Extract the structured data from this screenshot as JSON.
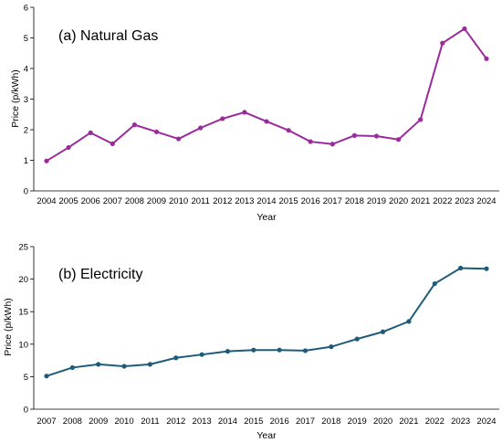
{
  "chart_data": [
    {
      "type": "line",
      "title": "(a) Natural Gas",
      "xlabel": "Year",
      "ylabel": "Price (p/kWh)",
      "ylim": [
        0,
        6
      ],
      "yticks": [
        0,
        1,
        2,
        3,
        4,
        5,
        6
      ],
      "x": [
        "2004",
        "2005",
        "2006",
        "2007",
        "2008",
        "2009",
        "2010",
        "2011",
        "2012",
        "2013",
        "2014",
        "2015",
        "2016",
        "2017",
        "2018",
        "2019",
        "2020",
        "2021",
        "2022",
        "2023",
        "2024"
      ],
      "series": [
        {
          "color": "#9b2a9c",
          "values": [
            0.98,
            1.42,
            1.9,
            1.54,
            2.16,
            1.93,
            1.7,
            2.06,
            2.36,
            2.57,
            2.27,
            1.98,
            1.61,
            1.53,
            1.81,
            1.79,
            1.68,
            2.33,
            4.83,
            5.3,
            4.32
          ]
        }
      ],
      "grid": false,
      "legend": "none"
    },
    {
      "type": "line",
      "title": "(b) Electricity",
      "xlabel": "Year",
      "ylabel": "Price (p/kWh)",
      "ylim": [
        0,
        25
      ],
      "yticks": [
        0,
        5,
        10,
        15,
        20,
        25
      ],
      "x": [
        "2007",
        "2008",
        "2009",
        "2010",
        "2011",
        "2012",
        "2013",
        "2014",
        "2015",
        "2016",
        "2017",
        "2018",
        "2019",
        "2020",
        "2021",
        "2022",
        "2023",
        "2024"
      ],
      "series": [
        {
          "color": "#1e5b7a",
          "values": [
            5.1,
            6.4,
            6.9,
            6.6,
            6.9,
            7.9,
            8.4,
            8.9,
            9.1,
            9.1,
            9.0,
            9.6,
            10.8,
            11.9,
            13.5,
            19.3,
            21.7,
            21.6
          ]
        }
      ],
      "grid": false,
      "legend": "none"
    }
  ]
}
